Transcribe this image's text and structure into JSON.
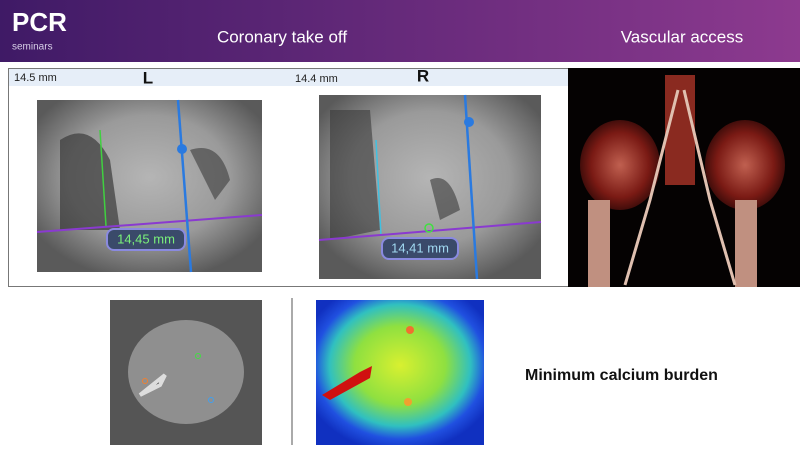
{
  "header": {
    "logo": "PCR",
    "logo_subtitle": "seminars",
    "title_left": "Coronary take off",
    "title_right": "Vascular access"
  },
  "panels": [
    {
      "size": "14.5 mm",
      "side": "L",
      "measurement": "14,45 mm"
    },
    {
      "size": "14.4 mm",
      "side": "R",
      "measurement": "14,41 mm"
    }
  ],
  "caption": "Minimum calcium burden"
}
